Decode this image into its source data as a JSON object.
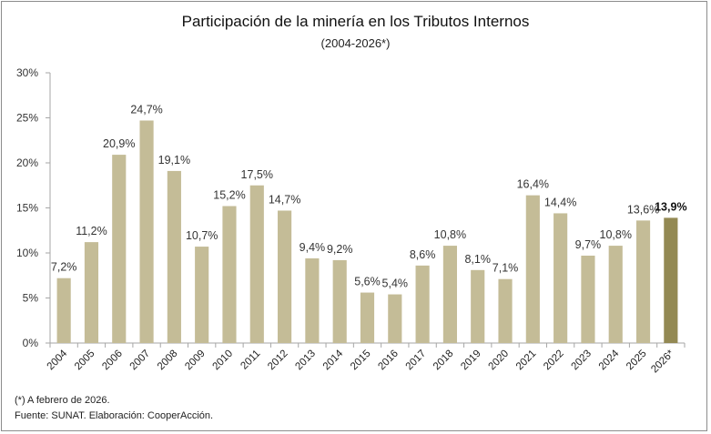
{
  "chart_data": {
    "type": "bar",
    "title": "Participación de la minería en los Tributos Internos",
    "subtitle": "(2004-2026*)",
    "xlabel": "",
    "ylabel": "",
    "ylim": [
      0,
      30
    ],
    "yticks": [
      0,
      5,
      10,
      15,
      20,
      25,
      30
    ],
    "ytick_labels": [
      "0%",
      "5%",
      "10%",
      "15%",
      "20%",
      "25%",
      "30%"
    ],
    "grid": false,
    "legend": "none",
    "categories": [
      "2004",
      "2005",
      "2006",
      "2007",
      "2008",
      "2009",
      "2010",
      "2011",
      "2012",
      "2013",
      "2014",
      "2015",
      "2016",
      "2017",
      "2018",
      "2019",
      "2020",
      "2021",
      "2022",
      "2023",
      "2024",
      "2025",
      "2026*"
    ],
    "values": [
      7.2,
      11.2,
      20.9,
      24.7,
      19.1,
      10.7,
      15.2,
      17.5,
      14.7,
      9.4,
      9.2,
      5.6,
      5.4,
      8.6,
      10.8,
      8.1,
      7.1,
      16.4,
      14.4,
      9.7,
      10.8,
      13.6,
      13.9
    ],
    "data_labels": [
      "7,2%",
      "11,2%",
      "20,9%",
      "24,7%",
      "19,1%",
      "10,7%",
      "15,2%",
      "17,5%",
      "14,7%",
      "9,4%",
      "9,2%",
      "5,6%",
      "5,4%",
      "8,6%",
      "10,8%",
      "8,1%",
      "7,1%",
      "16,4%",
      "14,4%",
      "9,7%",
      "10,8%",
      "13,6%",
      "13,9%"
    ],
    "highlight_index": 22,
    "colors": {
      "bar": "#c4bc97",
      "highlight": "#938953",
      "axis": "#a6a6a6",
      "text": "#333333"
    }
  },
  "footnotes": {
    "note": "(*) A febrero de 2026.",
    "source": "Fuente: SUNAT. Elaboración: CooperAcción."
  }
}
